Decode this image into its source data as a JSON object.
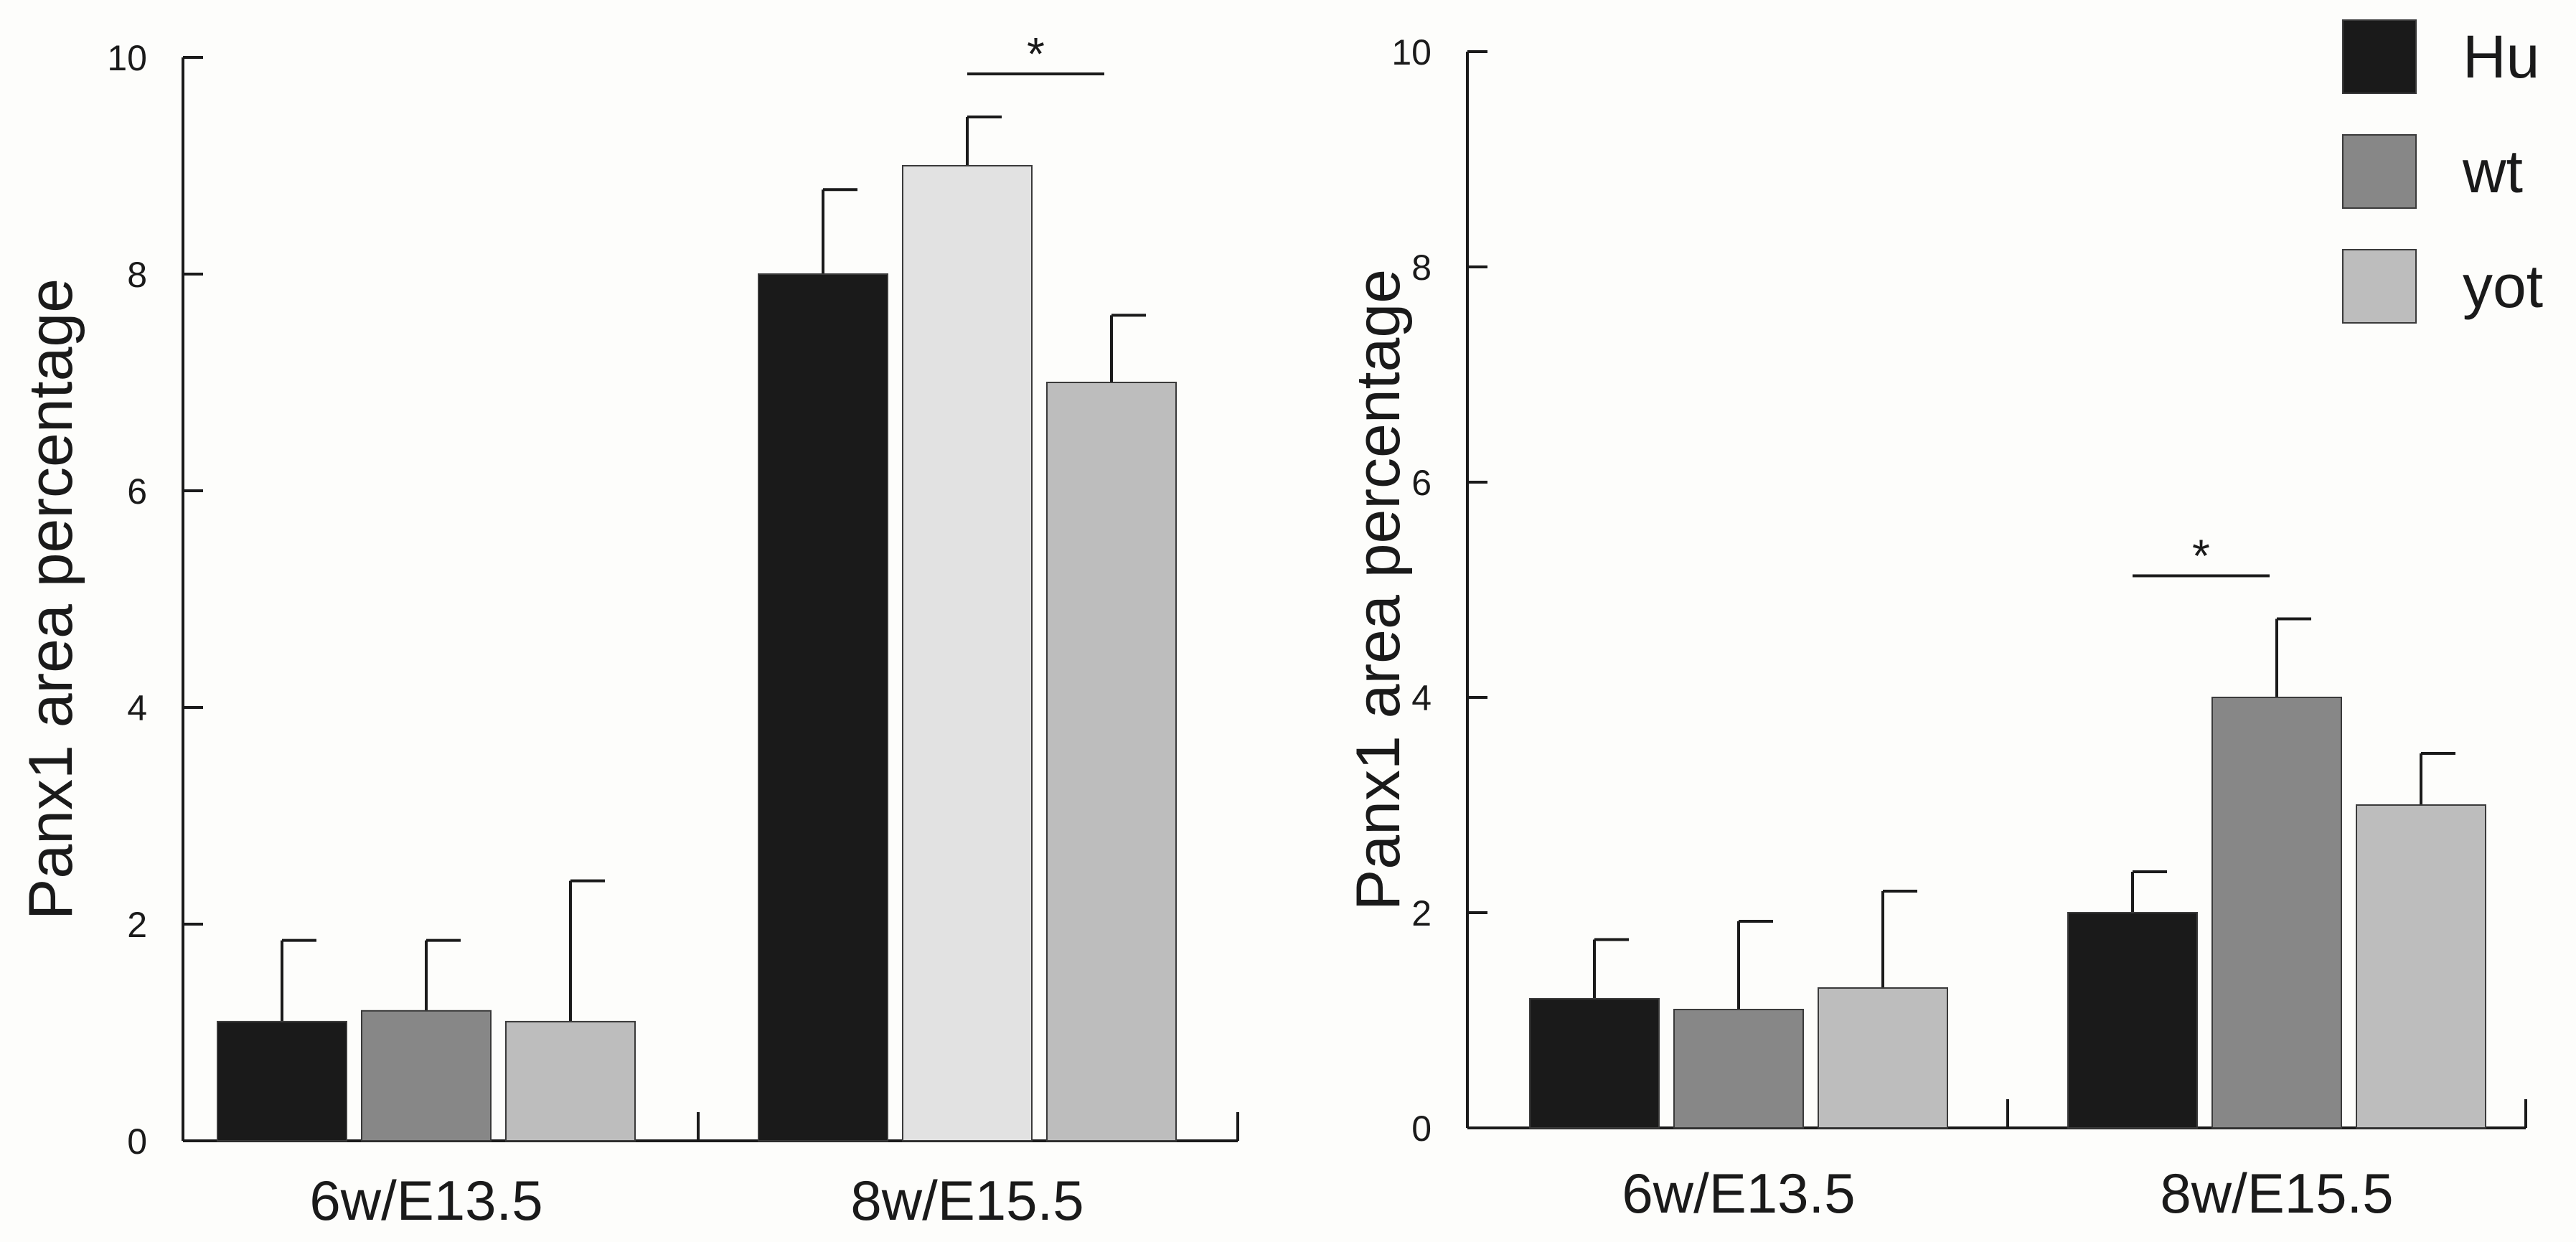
{
  "chart_data": [
    {
      "type": "bar",
      "title": "",
      "xlabel": "",
      "ylabel": "Panx1 area percentage",
      "ylim": [
        0,
        10
      ],
      "yticks": [
        "0",
        "2",
        "4",
        "6",
        "8",
        "10"
      ],
      "categories": [
        "6w/E13.5",
        "8w/E15.5"
      ],
      "series": [
        {
          "name": "Hu",
          "color": "#1a1a1a",
          "values": [
            1.1,
            8.0
          ],
          "errors": [
            0.75,
            0.78
          ]
        },
        {
          "name": "wt",
          "color": "#878787",
          "values": [
            1.2,
            9.0
          ],
          "errors": [
            0.65,
            0.45
          ]
        },
        {
          "name": "yot",
          "color": "#bdbdbd",
          "values": [
            1.1,
            7.0
          ],
          "errors": [
            1.3,
            0.62
          ]
        }
      ],
      "bar_colors_override": {
        "1.1": "#e2e2e2"
      },
      "significance": [
        {
          "category": 1,
          "from_series": 1,
          "to_series": 2,
          "label": "*"
        }
      ]
    },
    {
      "type": "bar",
      "title": "",
      "xlabel": "",
      "ylabel": "Panx1 area percentage",
      "ylim": [
        0,
        10
      ],
      "yticks": [
        "0",
        "2",
        "4",
        "6",
        "8",
        "10"
      ],
      "categories": [
        "6w/E13.5",
        "8w/E15.5"
      ],
      "series": [
        {
          "name": "Hu",
          "color": "#1a1a1a",
          "values": [
            1.2,
            2.0
          ],
          "errors": [
            0.55,
            0.38
          ]
        },
        {
          "name": "wt",
          "color": "#878787",
          "values": [
            1.1,
            4.0
          ],
          "errors": [
            0.82,
            0.73
          ]
        },
        {
          "name": "yot",
          "color": "#bdbdbd",
          "values": [
            1.3,
            3.0
          ],
          "errors": [
            0.9,
            0.48
          ]
        }
      ],
      "significance": [
        {
          "category": 1,
          "from_series": 0,
          "to_series": 1,
          "label": "*"
        }
      ]
    }
  ],
  "legend": [
    {
      "label": "Hu",
      "color": "#1a1a1a"
    },
    {
      "label": "wt",
      "color": "#878787"
    },
    {
      "label": "yot",
      "color": "#bdbdbd"
    }
  ]
}
